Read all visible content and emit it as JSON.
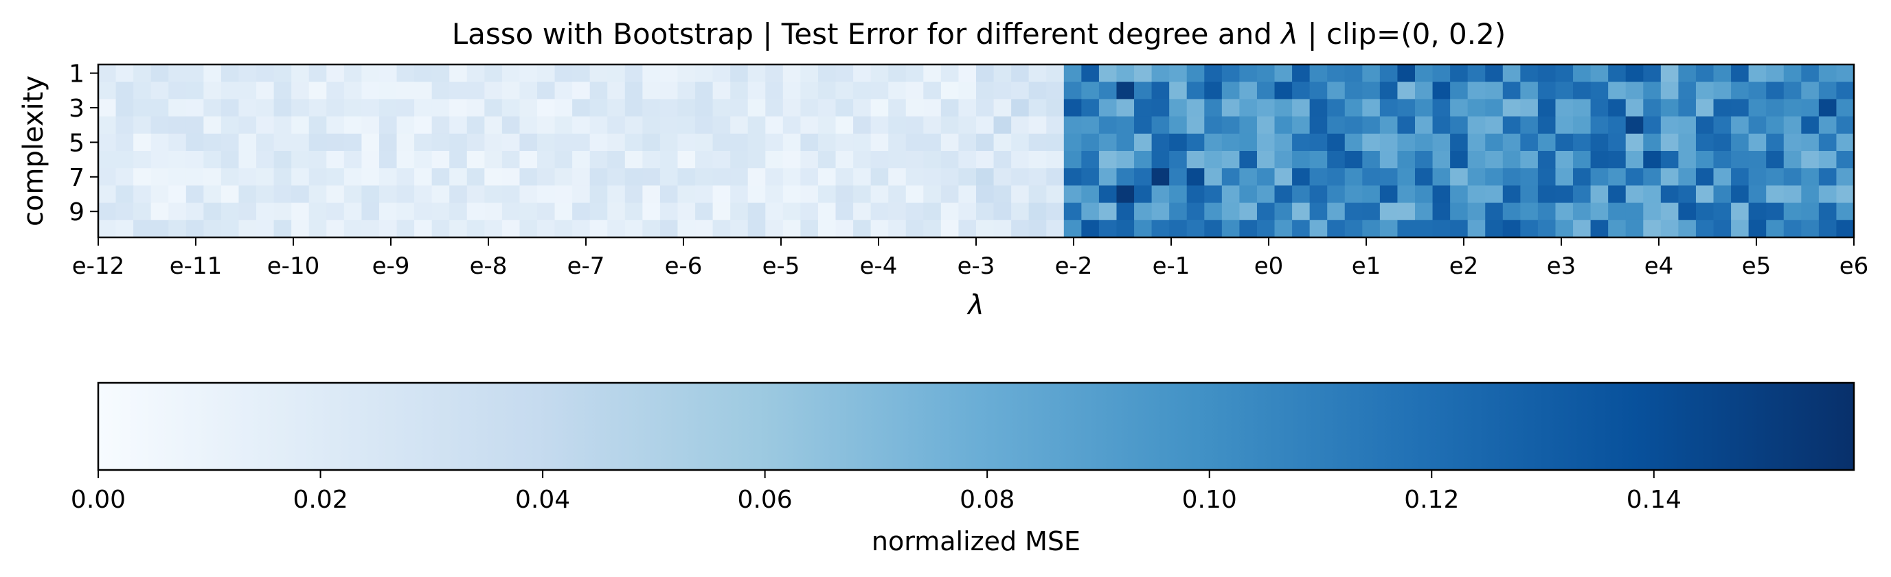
{
  "chart_data": [
    {
      "type": "heatmap",
      "title_prefix": "Lasso with Bootstrap | Test Error for different degree and ",
      "title_symbol": "λ",
      "title_suffix": " | clip=(0, 0.2)",
      "xlabel": "λ",
      "ylabel": "complexity",
      "x_tick_labels": [
        "e-12",
        "e-11",
        "e-10",
        "e-9",
        "e-8",
        "e-7",
        "e-6",
        "e-5",
        "e-4",
        "e-3",
        "e-2",
        "e-1",
        "e0",
        "e1",
        "e2",
        "e3",
        "e4",
        "e5",
        "e6"
      ],
      "x_range_log_e": [
        -12,
        6
      ],
      "y_tick_labels": [
        "1",
        "3",
        "5",
        "7",
        "9"
      ],
      "n_lambda": 100,
      "complexity": [
        1,
        2,
        3,
        4,
        5,
        6,
        7,
        8,
        9,
        10
      ],
      "value_pattern": {
        "lambda_below_e-2": "approx 0.005-0.035 (light)",
        "lambda_above_e-2": "approx 0.06-0.15 (dark)",
        "transition_lambda": "e-2"
      },
      "grid": false,
      "colormap": "Blues"
    },
    {
      "type": "colorbar",
      "label": "normalized MSE",
      "range": [
        0.0,
        0.158
      ],
      "tick_labels": [
        "0.00",
        "0.02",
        "0.04",
        "0.06",
        "0.08",
        "0.10",
        "0.12",
        "0.14"
      ],
      "tick_values": [
        0.0,
        0.02,
        0.04,
        0.06,
        0.08,
        0.1,
        0.12,
        0.14
      ],
      "colormap": "Blues",
      "orientation": "horizontal"
    }
  ],
  "colors": {
    "blues": [
      "#f7fbff",
      "#deebf7",
      "#c6dbef",
      "#9ecae1",
      "#6baed6",
      "#4292c6",
      "#2171b5",
      "#08519c",
      "#08306b"
    ]
  }
}
